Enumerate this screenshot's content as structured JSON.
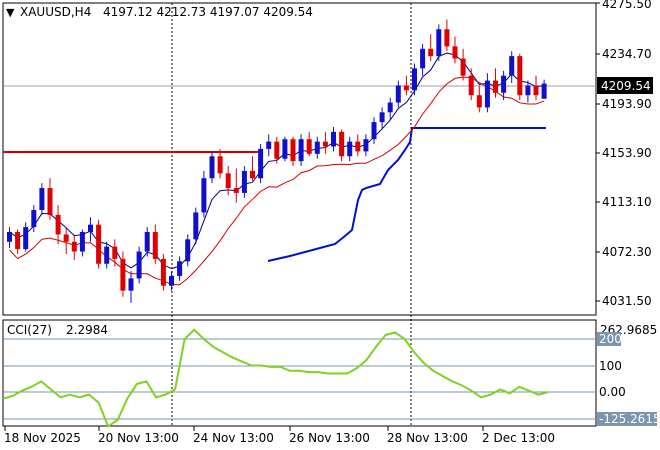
{
  "header": {
    "symbol": "XAUUSD,H4",
    "ohlc": "4197.12 4212.73 4197.07 4209.54"
  },
  "price_axis": {
    "ticks": [
      "4275.50",
      "4234.70",
      "4193.90",
      "4153.90",
      "4113.10",
      "4072.30",
      "4031.50"
    ],
    "current_price": "4209.54"
  },
  "time_axis": {
    "labels": [
      "18 Nov 2025",
      "20 Nov 13:00",
      "24 Nov 13:00",
      "26 Nov 13:00",
      "28 Nov 13:00",
      "2 Dec 13:00"
    ]
  },
  "cci_panel": {
    "label": "CCI(27)",
    "value": "2.2984",
    "levels": [
      "262.9685",
      "200",
      "100",
      "0.00",
      "-125.2615"
    ]
  },
  "colors": {
    "bull": "#1010cc",
    "bear": "#e00000",
    "fast_ma": "#d40000",
    "slow_ma": "#000080",
    "support": "#d40000",
    "trail": "#0010d0",
    "cci": "#7ed321"
  },
  "chart_data": [
    {
      "type": "candlestick",
      "title": "XAUUSD,H4",
      "ylim": [
        4010,
        4280
      ],
      "series": [
        {
          "name": "candles",
          "values": [
            [
              4080,
              4092,
              4075,
              4088
            ],
            [
              4088,
              4090,
              4070,
              4074
            ],
            [
              4074,
              4096,
              4072,
              4092
            ],
            [
              4092,
              4110,
              4088,
              4106
            ],
            [
              4106,
              4128,
              4102,
              4124
            ],
            [
              4124,
              4132,
              4098,
              4102
            ],
            [
              4102,
              4110,
              4078,
              4086
            ],
            [
              4086,
              4092,
              4070,
              4080
            ],
            [
              4080,
              4086,
              4065,
              4072
            ],
            [
              4072,
              4090,
              4068,
              4088
            ],
            [
              4088,
              4100,
              4080,
              4094
            ],
            [
              4094,
              4098,
              4058,
              4062
            ],
            [
              4062,
              4080,
              4058,
              4076
            ],
            [
              4076,
              4082,
              4060,
              4066
            ],
            [
              4066,
              4072,
              4035,
              4040
            ],
            [
              4040,
              4056,
              4030,
              4050
            ],
            [
              4050,
              4076,
              4046,
              4072
            ],
            [
              4072,
              4092,
              4068,
              4088
            ],
            [
              4088,
              4094,
              4062,
              4066
            ],
            [
              4066,
              4070,
              4040,
              4044
            ],
            [
              4044,
              4056,
              4040,
              4052
            ],
            [
              4052,
              4068,
              4048,
              4064
            ],
            [
              4064,
              4086,
              4060,
              4082
            ],
            [
              4082,
              4108,
              4078,
              4104
            ],
            [
              4104,
              4138,
              4100,
              4132
            ],
            [
              4132,
              4154,
              4128,
              4150
            ],
            [
              4150,
              4156,
              4132,
              4136
            ],
            [
              4136,
              4142,
              4118,
              4124
            ],
            [
              4124,
              4140,
              4112,
              4120
            ],
            [
              4120,
              4142,
              4116,
              4138
            ],
            [
              4138,
              4150,
              4130,
              4132
            ],
            [
              4132,
              4160,
              4128,
              4156
            ],
            [
              4156,
              4168,
              4150,
              4162
            ],
            [
              4162,
              4166,
              4144,
              4148
            ],
            [
              4148,
              4166,
              4146,
              4164
            ],
            [
              4164,
              4166,
              4142,
              4146
            ],
            [
              4146,
              4168,
              4142,
              4164
            ],
            [
              4164,
              4170,
              4150,
              4152
            ],
            [
              4152,
              4166,
              4148,
              4162
            ],
            [
              4162,
              4170,
              4152,
              4158
            ],
            [
              4158,
              4174,
              4154,
              4170
            ],
            [
              4170,
              4172,
              4146,
              4150
            ],
            [
              4150,
              4166,
              4146,
              4162
            ],
            [
              4162,
              4168,
              4150,
              4154
            ],
            [
              4154,
              4168,
              4150,
              4164
            ],
            [
              4164,
              4182,
              4160,
              4178
            ],
            [
              4178,
              4190,
              4172,
              4186
            ],
            [
              4186,
              4198,
              4180,
              4194
            ],
            [
              4194,
              4212,
              4190,
              4208
            ],
            [
              4208,
              4216,
              4200,
              4204
            ],
            [
              4204,
              4226,
              4200,
              4222
            ],
            [
              4222,
              4242,
              4216,
              4238
            ],
            [
              4238,
              4250,
              4228,
              4232
            ],
            [
              4232,
              4258,
              4228,
              4254
            ],
            [
              4254,
              4262,
              4236,
              4240
            ],
            [
              4240,
              4248,
              4226,
              4230
            ],
            [
              4230,
              4238,
              4212,
              4216
            ],
            [
              4216,
              4222,
              4196,
              4200
            ],
            [
              4200,
              4208,
              4186,
              4190
            ],
            [
              4190,
              4218,
              4186,
              4212
            ],
            [
              4212,
              4222,
              4198,
              4202
            ],
            [
              4202,
              4220,
              4196,
              4216
            ],
            [
              4216,
              4236,
              4210,
              4232
            ],
            [
              4232,
              4234,
              4196,
              4200
            ],
            [
              4200,
              4212,
              4194,
              4208
            ],
            [
              4208,
              4216,
              4196,
              4200
            ],
            [
              4197.12,
              4212.73,
              4197.07,
              4209.54
            ]
          ]
        }
      ],
      "support_level": 4158,
      "cci": [
        -25,
        -15,
        5,
        20,
        40,
        10,
        -20,
        -10,
        -20,
        -10,
        -40,
        -130,
        -105,
        -25,
        30,
        40,
        -20,
        -10,
        10,
        200,
        235,
        200,
        170,
        150,
        130,
        115,
        100,
        100,
        95,
        95,
        80,
        80,
        75,
        75,
        70,
        70,
        70,
        90,
        120,
        170,
        215,
        225,
        200,
        150,
        110,
        80,
        60,
        40,
        25,
        5,
        -20,
        -10,
        10,
        -5,
        20,
        5,
        -10,
        0
      ]
    }
  ]
}
